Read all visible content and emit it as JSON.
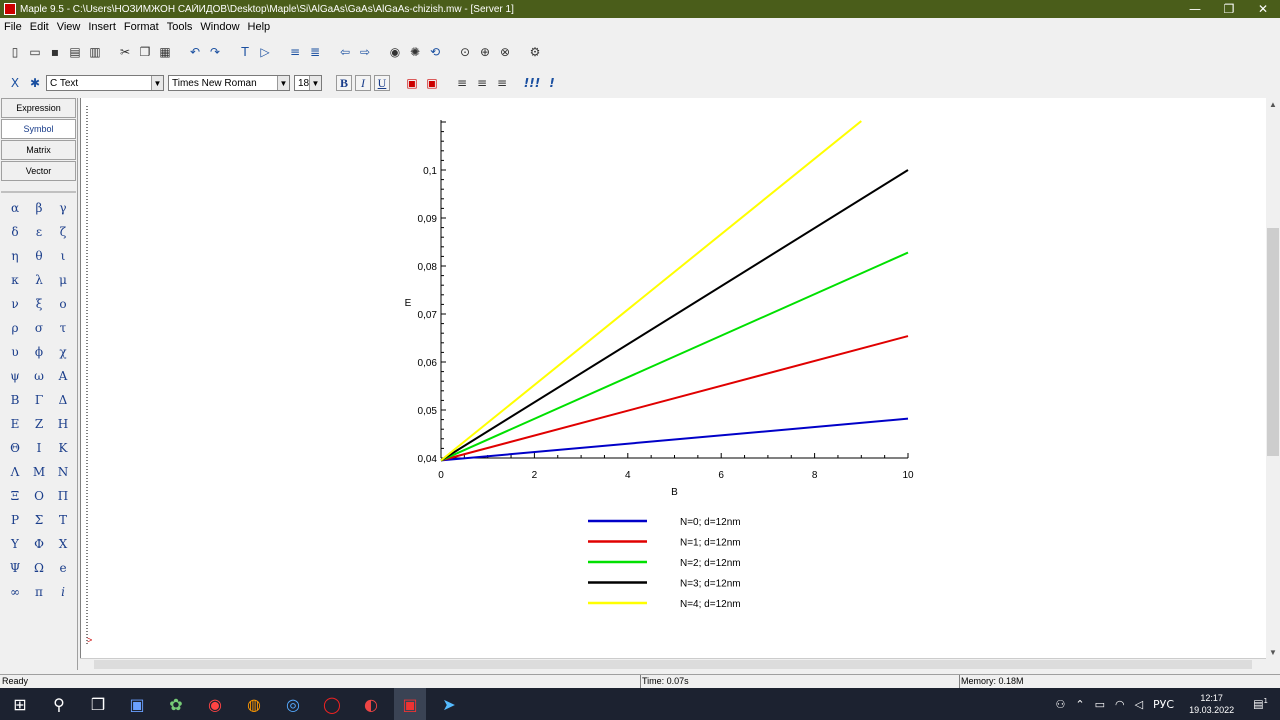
{
  "window": {
    "title": "Maple 9.5 - C:\\Users\\НОЗИМЖОН САЙИДОВ\\Desktop\\Maple\\Si\\AlGaAs\\GaAs\\AlGaAs-chizish.mw - [Server 1]",
    "minimize": "—",
    "maximize": "❐",
    "close": "✕"
  },
  "menu": [
    "File",
    "Edit",
    "View",
    "Insert",
    "Format",
    "Tools",
    "Window",
    "Help"
  ],
  "format_bar": {
    "style_value": "C  Text",
    "font_value": "Times New Roman",
    "size_value": "18",
    "bold": "B",
    "italic": "I",
    "underline": "U"
  },
  "palette": {
    "tabs": [
      "Expression",
      "Symbol",
      "Matrix",
      "Vector"
    ],
    "active_tab": "Symbol",
    "symbols": [
      "α",
      "β",
      "γ",
      "δ",
      "ε",
      "ζ",
      "η",
      "θ",
      "ι",
      "κ",
      "λ",
      "μ",
      "ν",
      "ξ",
      "ο",
      "ρ",
      "σ",
      "τ",
      "υ",
      "ϕ",
      "χ",
      "ψ",
      "ω",
      "Α",
      "Β",
      "Γ",
      "Δ",
      "Ε",
      "Ζ",
      "Η",
      "Θ",
      "Ι",
      "Κ",
      "Λ",
      "Μ",
      "Ν",
      "Ξ",
      "Ο",
      "Π",
      "Ρ",
      "Σ",
      "Τ",
      "Υ",
      "Φ",
      "Χ",
      "Ψ",
      "Ω",
      "e",
      "∞",
      "π",
      "i"
    ]
  },
  "chart_data": {
    "type": "line",
    "xlabel": "B",
    "ylabel": "E",
    "xlim": [
      0,
      10
    ],
    "ylim": [
      0.04,
      0.1
    ],
    "x_ticks": [
      "0",
      "2",
      "4",
      "6",
      "8",
      "10"
    ],
    "y_ticks": [
      "0,04",
      "0,05",
      "0,06",
      "0,07",
      "0,08",
      "0,09",
      "0,1"
    ],
    "series": [
      {
        "name": "N=0; d=12nm",
        "color": "#0000c8",
        "x": [
          0,
          10
        ],
        "y": [
          0.0395,
          0.0482
        ]
      },
      {
        "name": "N=1; d=12nm",
        "color": "#e00000",
        "x": [
          0,
          10
        ],
        "y": [
          0.0395,
          0.0654
        ]
      },
      {
        "name": "N=2; d=12nm",
        "color": "#00e000",
        "x": [
          0,
          10
        ],
        "y": [
          0.0395,
          0.0828
        ]
      },
      {
        "name": "N=3; d=12nm",
        "color": "#000000",
        "x": [
          0,
          10
        ],
        "y": [
          0.0395,
          0.1
        ]
      },
      {
        "name": "N=4; d=12nm",
        "color": "#ffff00",
        "x": [
          0,
          9
        ],
        "y": [
          0.0395,
          0.1102
        ]
      }
    ]
  },
  "status": {
    "state": "Ready",
    "time": "Time: 0.07s",
    "memory": "Memory: 0.18M"
  },
  "taskbar": {
    "tray_lang": "РУС",
    "clock_time": "12:17",
    "clock_date": "19.03.2022",
    "notif_count": "1"
  }
}
